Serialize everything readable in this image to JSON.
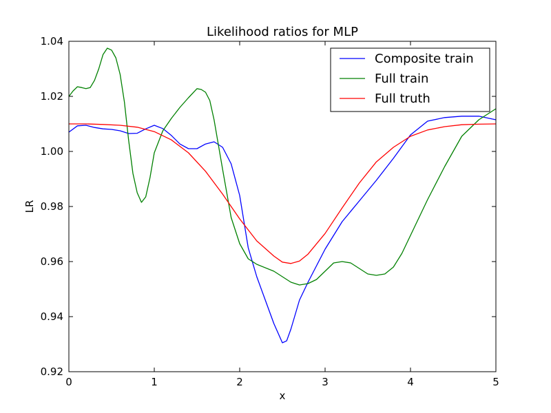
{
  "chart_data": {
    "type": "line",
    "title": "Likelihood ratios for MLP",
    "xlabel": "x",
    "ylabel": "LR",
    "xlim": [
      0,
      5
    ],
    "ylim": [
      0.92,
      1.04
    ],
    "xticks": [
      0,
      1,
      2,
      3,
      4,
      5
    ],
    "xtick_labels": [
      "0",
      "1",
      "2",
      "3",
      "4",
      "5"
    ],
    "yticks": [
      0.92,
      0.94,
      0.96,
      0.98,
      1.0,
      1.02,
      1.04
    ],
    "ytick_labels": [
      "0.92",
      "0.94",
      "0.96",
      "0.98",
      "1.00",
      "1.02",
      "1.04"
    ],
    "grid": false,
    "legend_position": "top-right",
    "series": [
      {
        "name": "Composite train",
        "color": "#0000ff",
        "x": [
          0,
          0.1,
          0.2,
          0.3,
          0.4,
          0.5,
          0.6,
          0.7,
          0.8,
          0.9,
          1.0,
          1.1,
          1.2,
          1.3,
          1.4,
          1.5,
          1.6,
          1.7,
          1.8,
          1.9,
          2.0,
          2.1,
          2.2,
          2.3,
          2.4,
          2.5,
          2.55,
          2.6,
          2.7,
          2.8,
          2.9,
          3.0,
          3.2,
          3.4,
          3.6,
          3.8,
          4.0,
          4.2,
          4.4,
          4.6,
          4.8,
          5.0
        ],
        "y": [
          1.007,
          1.0093,
          1.0095,
          1.0087,
          1.0082,
          1.008,
          1.0075,
          1.0065,
          1.0066,
          1.0082,
          1.0095,
          1.0083,
          1.0058,
          1.0027,
          1.001,
          1.001,
          1.0027,
          1.0035,
          1.0015,
          0.9955,
          0.984,
          0.965,
          0.9545,
          0.946,
          0.9375,
          0.9305,
          0.9312,
          0.9355,
          0.946,
          0.9525,
          0.9585,
          0.9645,
          0.9745,
          0.982,
          0.9895,
          0.9975,
          1.006,
          1.011,
          1.0123,
          1.0128,
          1.0128,
          1.0115
        ]
      },
      {
        "name": "Full train",
        "color": "#008000",
        "x": [
          0,
          0.05,
          0.1,
          0.15,
          0.2,
          0.25,
          0.3,
          0.35,
          0.4,
          0.45,
          0.5,
          0.55,
          0.6,
          0.65,
          0.7,
          0.75,
          0.8,
          0.85,
          0.9,
          0.95,
          1.0,
          1.1,
          1.2,
          1.3,
          1.4,
          1.5,
          1.55,
          1.6,
          1.65,
          1.7,
          1.8,
          1.9,
          2.0,
          2.1,
          2.2,
          2.4,
          2.6,
          2.7,
          2.8,
          2.9,
          3.0,
          3.1,
          3.2,
          3.3,
          3.4,
          3.5,
          3.6,
          3.7,
          3.8,
          3.9,
          4.0,
          4.2,
          4.4,
          4.6,
          4.8,
          5.0
        ],
        "y": [
          1.02,
          1.022,
          1.0235,
          1.0232,
          1.0228,
          1.0232,
          1.0258,
          1.03,
          1.0352,
          1.0375,
          1.0368,
          1.034,
          1.028,
          1.018,
          1.004,
          0.992,
          0.985,
          0.9815,
          0.9835,
          0.9905,
          0.9995,
          1.0075,
          1.012,
          1.016,
          1.0195,
          1.0228,
          1.0225,
          1.0215,
          1.0185,
          1.0115,
          0.9935,
          0.976,
          0.9665,
          0.961,
          0.959,
          0.9565,
          0.9525,
          0.9515,
          0.952,
          0.9535,
          0.9565,
          0.9595,
          0.96,
          0.9595,
          0.9575,
          0.9555,
          0.955,
          0.9555,
          0.958,
          0.963,
          0.9695,
          0.9825,
          0.9945,
          1.0055,
          1.0115,
          1.0155
        ]
      },
      {
        "name": "Full truth",
        "color": "#ff0000",
        "x": [
          0,
          0.2,
          0.4,
          0.6,
          0.8,
          1.0,
          1.2,
          1.4,
          1.6,
          1.8,
          2.0,
          2.2,
          2.4,
          2.5,
          2.6,
          2.7,
          2.8,
          3.0,
          3.2,
          3.4,
          3.6,
          3.8,
          4.0,
          4.2,
          4.4,
          4.6,
          4.8,
          5.0
        ],
        "y": [
          1.01,
          1.01,
          1.0098,
          1.0095,
          1.0088,
          1.0072,
          1.0042,
          0.9995,
          0.9928,
          0.9845,
          0.9755,
          0.9675,
          0.962,
          0.9598,
          0.9593,
          0.9602,
          0.9627,
          0.9702,
          0.9795,
          0.9885,
          0.9962,
          1.0015,
          1.0055,
          1.0078,
          1.009,
          1.0097,
          1.0099,
          1.01
        ]
      }
    ]
  }
}
